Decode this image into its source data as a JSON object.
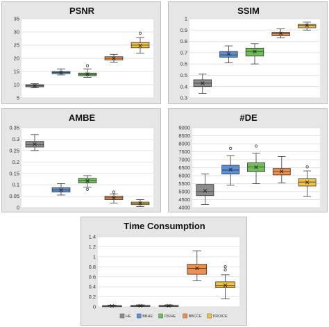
{
  "colors": {
    "HE": "#8c8c8c",
    "BBHE": "#5b8fd6",
    "DSIHE": "#6fbf59",
    "BBCCE": "#ef8f4a",
    "PROICE": "#f5c342"
  },
  "legend": [
    "HE",
    "BBHE",
    "DSIHE",
    "BBCCE",
    "PROICE"
  ],
  "chart_data": [
    {
      "id": "psnr",
      "type": "box",
      "title": "PSNR",
      "ylim": [
        5,
        35
      ],
      "yticks": [
        5,
        10,
        15,
        20,
        25,
        30,
        35
      ],
      "ytick_labels": [
        "5",
        "10",
        "15",
        "20",
        "25",
        "30",
        "35"
      ],
      "categories": [
        "HE",
        "BBHE",
        "DSIHE",
        "BBCCE",
        "PROICE"
      ],
      "boxes": [
        {
          "min": 8.8,
          "q1": 9.2,
          "median": 9.6,
          "q3": 10.0,
          "max": 10.4,
          "mean": 9.6,
          "outliers": []
        },
        {
          "min": 13.7,
          "q1": 14.2,
          "median": 14.6,
          "q3": 15.0,
          "max": 16.0,
          "mean": 14.6,
          "outliers": []
        },
        {
          "min": 12.8,
          "q1": 13.4,
          "median": 13.9,
          "q3": 14.4,
          "max": 16.0,
          "mean": 14.0,
          "outliers": [
            17.2
          ]
        },
        {
          "min": 18.5,
          "q1": 19.4,
          "median": 20.0,
          "q3": 20.6,
          "max": 21.5,
          "mean": 20.0,
          "outliers": []
        },
        {
          "min": 22.0,
          "q1": 24.0,
          "median": 25.0,
          "q3": 26.0,
          "max": 27.8,
          "mean": 24.8,
          "outliers": [
            29.5
          ]
        }
      ]
    },
    {
      "id": "ssim",
      "type": "box",
      "title": "SSIM",
      "ylim": [
        0.3,
        1.0
      ],
      "yticks": [
        0.3,
        0.4,
        0.5,
        0.6,
        0.7,
        0.8,
        0.9,
        1.0
      ],
      "ytick_labels": [
        "0.3",
        "0.4",
        "0.5",
        "0.6",
        "0.7",
        "0.8",
        "0.9",
        "1"
      ],
      "categories": [
        "HE",
        "BBHE",
        "DSIHE",
        "BBCCE",
        "PROICE"
      ],
      "boxes": [
        {
          "min": 0.34,
          "q1": 0.4,
          "median": 0.43,
          "q3": 0.46,
          "max": 0.51,
          "mean": 0.43,
          "outliers": []
        },
        {
          "min": 0.61,
          "q1": 0.66,
          "median": 0.68,
          "q3": 0.71,
          "max": 0.76,
          "mean": 0.69,
          "outliers": []
        },
        {
          "min": 0.6,
          "q1": 0.67,
          "median": 0.71,
          "q3": 0.74,
          "max": 0.78,
          "mean": 0.71,
          "outliers": []
        },
        {
          "min": 0.83,
          "q1": 0.85,
          "median": 0.87,
          "q3": 0.88,
          "max": 0.91,
          "mean": 0.87,
          "outliers": []
        },
        {
          "min": 0.9,
          "q1": 0.92,
          "median": 0.94,
          "q3": 0.95,
          "max": 0.97,
          "mean": 0.94,
          "outliers": []
        }
      ]
    },
    {
      "id": "ambe",
      "type": "box",
      "title": "AMBE",
      "ylim": [
        0,
        0.35
      ],
      "yticks": [
        0,
        0.05,
        0.1,
        0.15,
        0.2,
        0.25,
        0.3,
        0.35
      ],
      "ytick_labels": [
        "0",
        "0.05",
        "0.1",
        "0.15",
        "0.2",
        "0.25",
        "0.3",
        "0.35"
      ],
      "categories": [
        "HE",
        "BBHE",
        "DSIHE",
        "BBCCE",
        "PROICE"
      ],
      "boxes": [
        {
          "min": 0.25,
          "q1": 0.265,
          "median": 0.275,
          "q3": 0.29,
          "max": 0.32,
          "mean": 0.278,
          "outliers": []
        },
        {
          "min": 0.055,
          "q1": 0.068,
          "median": 0.077,
          "q3": 0.087,
          "max": 0.105,
          "mean": 0.077,
          "outliers": []
        },
        {
          "min": 0.09,
          "q1": 0.108,
          "median": 0.118,
          "q3": 0.128,
          "max": 0.14,
          "mean": 0.117,
          "outliers": [
            0.08
          ]
        },
        {
          "min": 0.02,
          "q1": 0.035,
          "median": 0.043,
          "q3": 0.05,
          "max": 0.06,
          "mean": 0.042,
          "outliers": [
            0.068
          ]
        },
        {
          "min": 0.005,
          "q1": 0.013,
          "median": 0.018,
          "q3": 0.024,
          "max": 0.035,
          "mean": 0.019,
          "outliers": []
        }
      ]
    },
    {
      "id": "de",
      "type": "box",
      "title": "#DE",
      "ylim": [
        4000,
        9000
      ],
      "yticks": [
        4000,
        4500,
        5000,
        5500,
        6000,
        6500,
        7000,
        7500,
        8000,
        8500,
        9000
      ],
      "ytick_labels": [
        "4000",
        "4500",
        "5000",
        "5500",
        "6000",
        "6500",
        "7000",
        "7500",
        "8000",
        "8500",
        "9000"
      ],
      "categories": [
        "HE",
        "BBHE",
        "DSIHE",
        "BBCCE",
        "PROICE"
      ],
      "boxes": [
        {
          "min": 4200,
          "q1": 4750,
          "median": 5000,
          "q3": 5450,
          "max": 6100,
          "mean": 5050,
          "outliers": []
        },
        {
          "min": 5400,
          "q1": 6100,
          "median": 6350,
          "q3": 6650,
          "max": 7250,
          "mean": 6380,
          "outliers": [
            7700
          ]
        },
        {
          "min": 5500,
          "q1": 6250,
          "median": 6550,
          "q3": 6800,
          "max": 7400,
          "mean": 6530,
          "outliers": [
            7850
          ]
        },
        {
          "min": 5550,
          "q1": 6050,
          "median": 6250,
          "q3": 6450,
          "max": 7200,
          "mean": 6270,
          "outliers": []
        },
        {
          "min": 4700,
          "q1": 5350,
          "median": 5600,
          "q3": 5800,
          "max": 6300,
          "mean": 5580,
          "outliers": [
            6550
          ]
        }
      ]
    },
    {
      "id": "time",
      "type": "box",
      "title": "Time Consumption",
      "ylim": [
        0,
        1.4
      ],
      "yticks": [
        0,
        0.2,
        0.4,
        0.6,
        0.8,
        1.0,
        1.2,
        1.4
      ],
      "ytick_labels": [
        "0",
        "0.2",
        "0.4",
        "0.6",
        "0.8",
        "1",
        "1.2",
        "1.4"
      ],
      "categories": [
        "HE",
        "BBHE",
        "DSIHE",
        "BBCCE",
        "PROICE"
      ],
      "boxes": [
        {
          "min": 0.005,
          "q1": 0.012,
          "median": 0.018,
          "q3": 0.024,
          "max": 0.035,
          "mean": 0.018,
          "outliers": []
        },
        {
          "min": 0.008,
          "q1": 0.016,
          "median": 0.022,
          "q3": 0.028,
          "max": 0.04,
          "mean": 0.022,
          "outliers": []
        },
        {
          "min": 0.008,
          "q1": 0.016,
          "median": 0.022,
          "q3": 0.028,
          "max": 0.04,
          "mean": 0.022,
          "outliers": []
        },
        {
          "min": 0.52,
          "q1": 0.65,
          "median": 0.77,
          "q3": 0.85,
          "max": 1.12,
          "mean": 0.77,
          "outliers": []
        },
        {
          "min": 0.16,
          "q1": 0.38,
          "median": 0.42,
          "q3": 0.5,
          "max": 0.64,
          "mean": 0.43,
          "outliers": [
            0.74,
            0.8
          ]
        }
      ]
    }
  ]
}
